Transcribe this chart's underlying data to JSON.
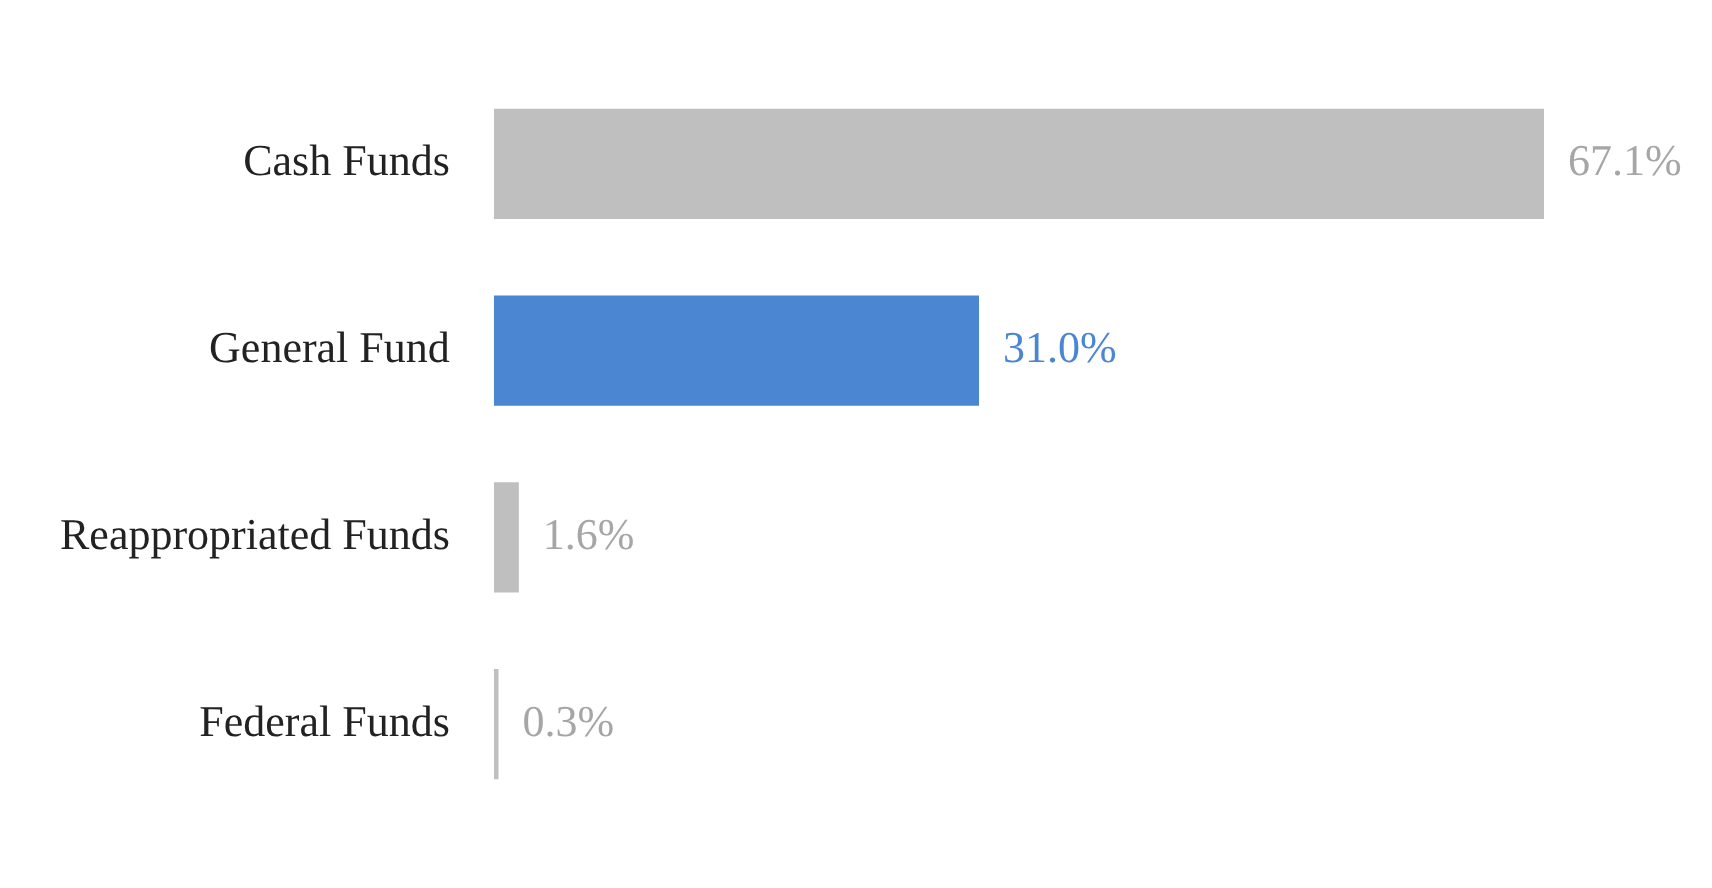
{
  "chart_data": {
    "type": "bar",
    "orientation": "horizontal",
    "categories": [
      "Cash Funds",
      "General Fund",
      "Reappropriated Funds",
      "Federal Funds"
    ],
    "values": [
      67.1,
      31.0,
      1.6,
      0.3
    ],
    "colors": [
      "#bfbfbf",
      "#4a86d1",
      "#bfbfbf",
      "#bfbfbf"
    ],
    "value_labels": [
      "67.1%",
      "31.0%",
      "1.6%",
      "0.3%"
    ],
    "xlim": [
      0,
      67.1
    ],
    "tick_labels": "y",
    "grid": false,
    "legend": false
  }
}
